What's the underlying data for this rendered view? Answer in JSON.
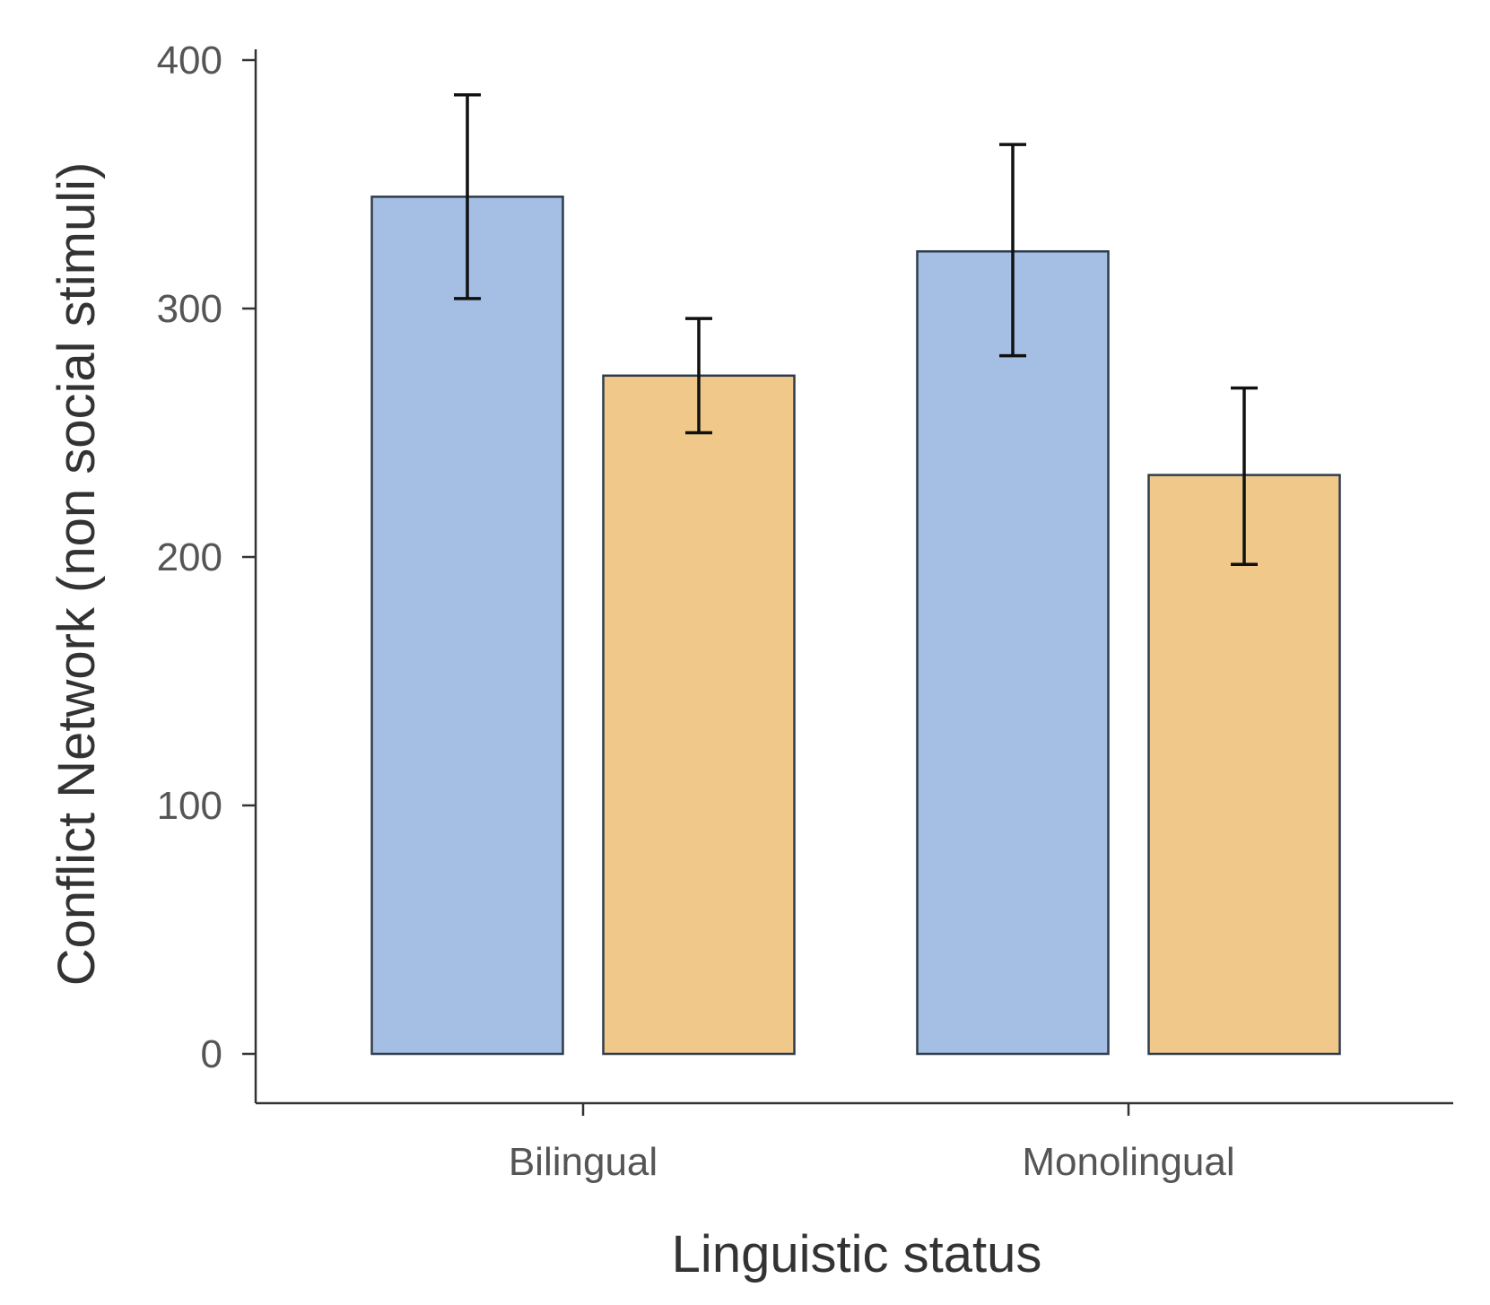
{
  "chart_data": {
    "type": "bar",
    "categories": [
      "Bilingual",
      "Monolingual"
    ],
    "series": [
      {
        "color": "#a5bfe4",
        "values": [
          345,
          323
        ],
        "error_low": [
          304,
          281
        ],
        "error_high": [
          386,
          366
        ]
      },
      {
        "color": "#efc88a",
        "values": [
          273,
          233
        ],
        "error_low": [
          250,
          197
        ],
        "error_high": [
          296,
          268
        ]
      }
    ],
    "xlabel": "Linguistic status",
    "ylabel": "Conflict Network (non social stimuli)",
    "ylim": [
      0,
      400
    ],
    "yticks": [
      0,
      100,
      200,
      300,
      400
    ],
    "grid": false,
    "legend": "none"
  }
}
